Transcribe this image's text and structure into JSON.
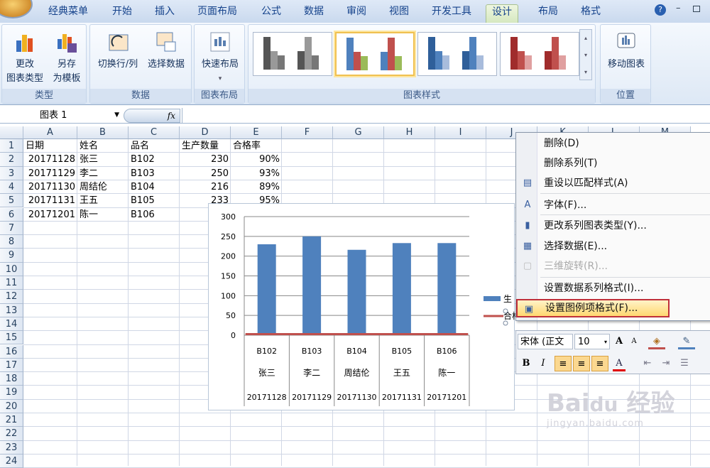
{
  "ribbon": {
    "tabs": [
      "经典菜单",
      "开始",
      "插入",
      "页面布局",
      "公式",
      "数据",
      "审阅",
      "视图",
      "开发工具",
      "设计",
      "布局",
      "格式"
    ],
    "active_tab": "设计",
    "groups": {
      "type": {
        "label": "类型",
        "buttons": [
          {
            "line1": "更改",
            "line2": "图表类型"
          },
          {
            "line1": "另存",
            "line2": "为模板"
          }
        ]
      },
      "data": {
        "label": "数据",
        "buttons": [
          "切换行/列",
          "选择数据"
        ]
      },
      "layout": {
        "label": "图表布局",
        "button": "快速布局"
      },
      "styles": {
        "label": "图表样式"
      },
      "position": {
        "label": "位置",
        "button": "移动图表"
      }
    }
  },
  "formula_bar": {
    "name_box": "图表 1",
    "fx": "fx",
    "value": ""
  },
  "sheet": {
    "columns": [
      "A",
      "B",
      "C",
      "D",
      "E",
      "F",
      "G",
      "H",
      "I",
      "J",
      "K",
      "L",
      "M"
    ],
    "rows": [
      "1",
      "2",
      "3",
      "4",
      "5",
      "6",
      "7",
      "8",
      "9",
      "10",
      "11",
      "12",
      "13",
      "14",
      "15",
      "16",
      "17",
      "18",
      "19",
      "20",
      "21",
      "22",
      "23",
      "24"
    ],
    "cells": [
      [
        "日期",
        "姓名",
        "品名",
        "生产数量",
        "合格率"
      ],
      [
        "20171128",
        "张三",
        "B102",
        "230",
        "90%"
      ],
      [
        "20171129",
        "李二",
        "B103",
        "250",
        "93%"
      ],
      [
        "20171130",
        "周结伦",
        "B104",
        "216",
        "89%"
      ],
      [
        "20171131",
        "王五",
        "B105",
        "233",
        "95%"
      ],
      [
        "20171201",
        "陈一",
        "B106",
        "",
        ""
      ]
    ]
  },
  "chart_data": {
    "type": "bar",
    "categories": [
      [
        "B102",
        "张三",
        "20171128"
      ],
      [
        "B103",
        "李二",
        "20171129"
      ],
      [
        "B104",
        "周结伦",
        "20171130"
      ],
      [
        "B105",
        "王五",
        "20171131"
      ],
      [
        "B106",
        "陈一",
        "20171201"
      ]
    ],
    "series": [
      {
        "name": "生产数量",
        "type": "bar",
        "values": [
          230,
          250,
          216,
          233,
          233
        ],
        "color": "#4f81bd"
      },
      {
        "name": "合格率",
        "type": "line",
        "values": [
          0.9,
          0.93,
          0.89,
          0.95,
          0.9
        ],
        "color": "#c0504d"
      }
    ],
    "yticks": [
      "0",
      "50",
      "100",
      "150",
      "200",
      "250",
      "300"
    ],
    "ylim": [
      0,
      300
    ],
    "grid": true,
    "legend": "right",
    "legend_visible": [
      "生",
      "合格"
    ]
  },
  "context_menu": {
    "items": [
      {
        "label": "删除(D)",
        "icon": "",
        "disabled": false
      },
      {
        "label": "删除系列(T)",
        "icon": "",
        "disabled": false
      },
      {
        "label": "重设以匹配样式(A)",
        "icon": "reset-style-icon",
        "disabled": false
      },
      {
        "label": "字体(F)...",
        "icon": "font-icon",
        "disabled": false
      },
      {
        "label": "更改系列图表类型(Y)...",
        "icon": "chart-type-icon",
        "disabled": false
      },
      {
        "label": "选择数据(E)...",
        "icon": "select-data-icon",
        "disabled": false
      },
      {
        "label": "三维旋转(R)...",
        "icon": "3d-rotate-icon",
        "disabled": true
      },
      {
        "label": "设置数据系列格式(I)...",
        "icon": "",
        "disabled": false
      },
      {
        "label": "设置图例项格式(F)...",
        "icon": "format-legend-icon",
        "disabled": false,
        "highlighted": true
      }
    ]
  },
  "mini_toolbar": {
    "font": "宋体 (正文",
    "size": "10",
    "bold": "B",
    "italic": "I",
    "font_color": "A",
    "grow": "A",
    "shrink": "A"
  },
  "watermark": "Bai du 经验",
  "watermark_sub": "jingyan.baidu.com"
}
